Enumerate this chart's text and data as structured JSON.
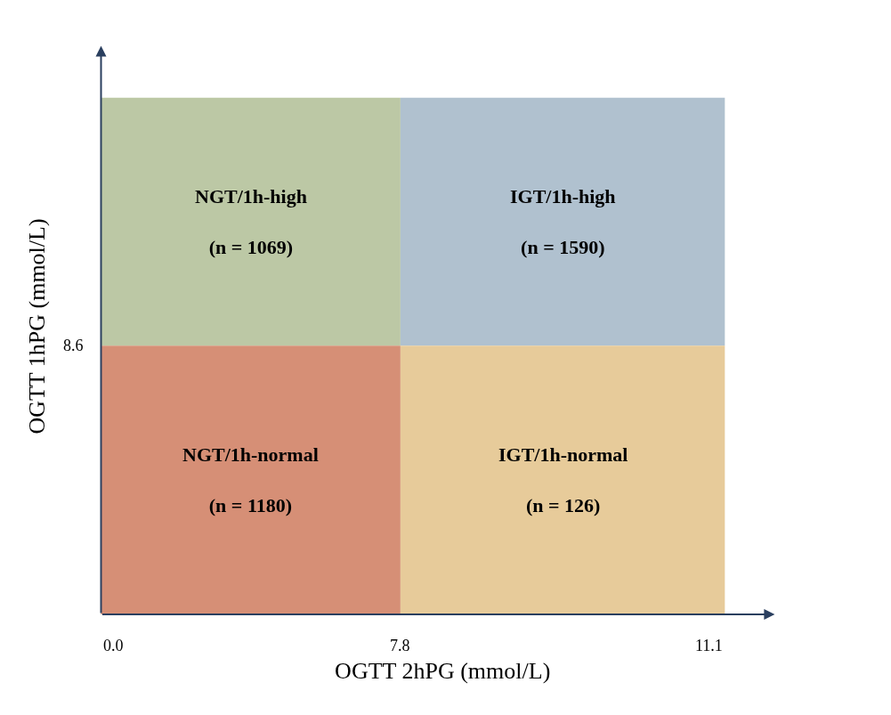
{
  "chart_data": {
    "type": "other",
    "xlabel": "OGTT 2hPG (mmol/L)",
    "ylabel": "OGTT 1hPG (mmol/L)",
    "categories": [
      "NGT/1h-high",
      "IGT/1h-high",
      "NGT/1h-normal",
      "IGT/1h-normal"
    ],
    "values": [
      1069,
      1590,
      1180,
      126
    ],
    "value_labels": [
      "(n = 1069)",
      "(n = 1590)",
      "(n = 1180)",
      "(n = 126)"
    ],
    "annotations": [
      "0.0",
      "7.8",
      "11.1",
      "8.6"
    ],
    "colors": [
      "#bcc8a5",
      "#b0c1cf",
      "#d68f76",
      "#e7cb9a"
    ]
  }
}
